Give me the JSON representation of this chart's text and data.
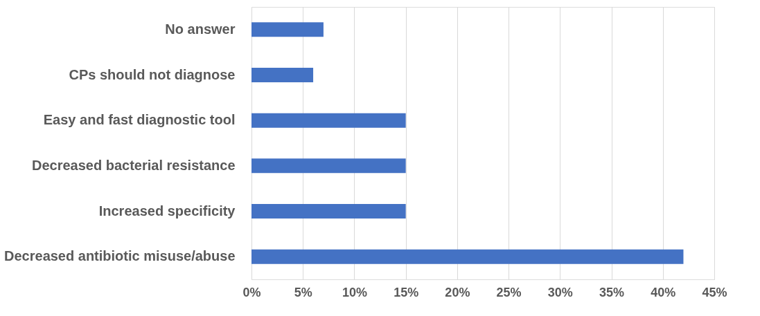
{
  "chart_data": {
    "type": "bar",
    "orientation": "horizontal",
    "categories": [
      "No answer",
      "CPs should not diagnose",
      "Easy and fast diagnostic tool",
      "Decreased bacterial resistance",
      "Increased specificity",
      "Decreased antibiotic misuse/abuse"
    ],
    "values": [
      7,
      6,
      15,
      15,
      15,
      42
    ],
    "color": "#4472c4",
    "xlim": [
      0,
      45
    ],
    "xticks": [
      {
        "value": 0,
        "label": "0%"
      },
      {
        "value": 5,
        "label": "5%"
      },
      {
        "value": 10,
        "label": "10%"
      },
      {
        "value": 15,
        "label": "15%"
      },
      {
        "value": 20,
        "label": "20%"
      },
      {
        "value": 25,
        "label": "25%"
      },
      {
        "value": 30,
        "label": "30%"
      },
      {
        "value": 35,
        "label": "35%"
      },
      {
        "value": 40,
        "label": "40%"
      },
      {
        "value": 45,
        "label": "45%"
      }
    ],
    "grid": "x"
  }
}
